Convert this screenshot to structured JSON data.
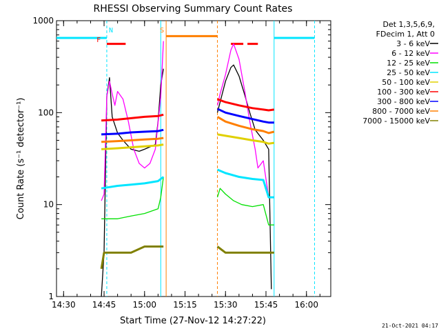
{
  "chart_data": {
    "type": "line",
    "title": "RHESSI Observing Summary Count Rates",
    "xlabel": "Start Time (27-Nov-12 14:27:22)",
    "ylabel": "Count Rate (s⁻¹ detector⁻¹)",
    "y_scale": "log",
    "ylim": [
      1,
      1000
    ],
    "xlim_minutes": [
      14.37,
      16.15
    ],
    "x_ticks": [
      "14:30",
      "14:45",
      "15:00",
      "15:15",
      "15:30",
      "15:45",
      "16:00"
    ],
    "y_ticks": [
      "1",
      "10",
      "100",
      "1000"
    ],
    "footer": "21-Oct-2021 04:17",
    "legend_header": [
      "Det 1,3,5,6,9,",
      "FDecim 1, Att 0"
    ],
    "markers": [
      {
        "label": "N",
        "x": "14:46",
        "color": "#00e5ff"
      },
      {
        "label": "F",
        "x": "14:44",
        "color": "#ff0000"
      },
      {
        "label": "S",
        "x": "15:08",
        "color": "#ff7f00"
      }
    ],
    "series": [
      {
        "name": "3 - 6 keV",
        "color": "#000000",
        "segments": [
          [
            [
              "14:44",
              1
            ],
            [
              "14:45",
              3
            ],
            [
              "14:46",
              150
            ],
            [
              "14:47",
              240
            ],
            [
              "14:48",
              90
            ],
            [
              "14:50",
              60
            ],
            [
              "14:52",
              50
            ],
            [
              "14:55",
              40
            ],
            [
              "14:58",
              38
            ],
            [
              "15:00",
              40
            ],
            [
              "15:04",
              45
            ],
            [
              "15:05",
              80
            ],
            [
              "15:06",
              200
            ],
            [
              "15:07",
              300
            ]
          ],
          [
            [
              "15:27",
              100
            ],
            [
              "15:28",
              130
            ],
            [
              "15:30",
              220
            ],
            [
              "15:32",
              310
            ],
            [
              "15:33",
              330
            ],
            [
              "15:35",
              250
            ],
            [
              "15:37",
              160
            ],
            [
              "15:39",
              100
            ],
            [
              "15:41",
              65
            ],
            [
              "15:44",
              50
            ],
            [
              "15:46",
              40
            ],
            [
              "15:47",
              1.2
            ]
          ]
        ]
      },
      {
        "name": "6 - 12 keV",
        "color": "#ff00ff",
        "segments": [
          [
            [
              "14:44",
              11
            ],
            [
              "14:45",
              13
            ],
            [
              "14:46",
              150
            ],
            [
              "14:47",
              220
            ],
            [
              "14:48",
              160
            ],
            [
              "14:49",
              120
            ],
            [
              "14:50",
              170
            ],
            [
              "14:52",
              140
            ],
            [
              "14:54",
              80
            ],
            [
              "14:56",
              40
            ],
            [
              "14:58",
              28
            ],
            [
              "15:00",
              25
            ],
            [
              "15:02",
              28
            ],
            [
              "15:04",
              40
            ],
            [
              "15:06",
              150
            ],
            [
              "15:07",
              600
            ]
          ],
          [
            [
              "15:27",
              120
            ],
            [
              "15:28",
              160
            ],
            [
              "15:30",
              260
            ],
            [
              "15:32",
              480
            ],
            [
              "15:33",
              560
            ],
            [
              "15:35",
              380
            ],
            [
              "15:37",
              180
            ],
            [
              "15:39",
              80
            ],
            [
              "15:41",
              40
            ],
            [
              "15:42",
              25
            ],
            [
              "15:44",
              30
            ],
            [
              "15:46",
              12
            ],
            [
              "15:48",
              12
            ]
          ]
        ]
      },
      {
        "name": "12 - 25 keV",
        "color": "#00e000",
        "segments": [
          [
            [
              "14:44",
              7
            ],
            [
              "14:50",
              7
            ],
            [
              "14:55",
              7.5
            ],
            [
              "15:00",
              8
            ],
            [
              "15:05",
              9
            ],
            [
              "15:06",
              12
            ],
            [
              "15:07",
              20
            ]
          ],
          [
            [
              "15:27",
              12
            ],
            [
              "15:28",
              15
            ],
            [
              "15:30",
              13
            ],
            [
              "15:33",
              11
            ],
            [
              "15:36",
              10
            ],
            [
              "15:40",
              9.5
            ],
            [
              "15:44",
              10
            ],
            [
              "15:46",
              6
            ],
            [
              "15:48",
              6
            ]
          ]
        ]
      },
      {
        "name": "25 - 50 keV",
        "color": "#00e5ff",
        "segments": [
          [
            [
              "14:44",
              15
            ],
            [
              "14:50",
              16
            ],
            [
              "14:55",
              16.5
            ],
            [
              "15:00",
              17
            ],
            [
              "15:05",
              18
            ],
            [
              "15:07",
              20
            ]
          ],
          [
            [
              "15:27",
              24
            ],
            [
              "15:30",
              22
            ],
            [
              "15:35",
              20
            ],
            [
              "15:40",
              19
            ],
            [
              "15:44",
              18.5
            ],
            [
              "15:46",
              12
            ],
            [
              "15:48",
              12
            ]
          ]
        ]
      },
      {
        "name": "50 - 100 keV",
        "color": "#e0d000",
        "segments": [
          [
            [
              "14:44",
              40
            ],
            [
              "14:50",
              41
            ],
            [
              "14:55",
              42
            ],
            [
              "15:00",
              43
            ],
            [
              "15:05",
              44
            ],
            [
              "15:07",
              45
            ]
          ],
          [
            [
              "15:27",
              58
            ],
            [
              "15:30",
              56
            ],
            [
              "15:35",
              53
            ],
            [
              "15:40",
              50
            ],
            [
              "15:44",
              48
            ],
            [
              "15:46",
              46
            ],
            [
              "15:48",
              47
            ]
          ]
        ]
      },
      {
        "name": "100 - 300 keV",
        "color": "#ff0000",
        "segments": [
          [
            [
              "14:44",
              82
            ],
            [
              "14:50",
              84
            ],
            [
              "14:55",
              87
            ],
            [
              "15:00",
              90
            ],
            [
              "15:05",
              92
            ],
            [
              "15:07",
              95
            ]
          ],
          [
            [
              "15:27",
              140
            ],
            [
              "15:30",
              130
            ],
            [
              "15:35",
              120
            ],
            [
              "15:40",
              112
            ],
            [
              "15:44",
              108
            ],
            [
              "15:46",
              106
            ],
            [
              "15:48",
              108
            ]
          ]
        ]
      },
      {
        "name": "300 - 800 keV",
        "color": "#0000ff",
        "segments": [
          [
            [
              "14:44",
              58
            ],
            [
              "14:50",
              59
            ],
            [
              "14:55",
              61
            ],
            [
              "15:00",
              62
            ],
            [
              "15:05",
              63
            ],
            [
              "15:07",
              65
            ]
          ],
          [
            [
              "15:27",
              110
            ],
            [
              "15:30",
              100
            ],
            [
              "15:35",
              92
            ],
            [
              "15:40",
              85
            ],
            [
              "15:44",
              80
            ],
            [
              "15:46",
              78
            ],
            [
              "15:48",
              78
            ]
          ]
        ]
      },
      {
        "name": "800 - 7000 keV",
        "color": "#ff7f00",
        "segments": [
          [
            [
              "14:44",
              48
            ],
            [
              "14:50",
              49
            ],
            [
              "14:55",
              50
            ],
            [
              "15:00",
              51
            ],
            [
              "15:05",
              52
            ],
            [
              "15:07",
              53
            ]
          ],
          [
            [
              "15:27",
              90
            ],
            [
              "15:30",
              80
            ],
            [
              "15:35",
              72
            ],
            [
              "15:40",
              66
            ],
            [
              "15:44",
              63
            ],
            [
              "15:46",
              60
            ],
            [
              "15:48",
              62
            ]
          ]
        ]
      },
      {
        "name": "7000 - 15000 keV",
        "color": "#808000",
        "segments": [
          [
            [
              "14:44",
              2
            ],
            [
              "14:45",
              3
            ],
            [
              "14:50",
              3
            ],
            [
              "14:55",
              3
            ],
            [
              "15:00",
              3.5
            ],
            [
              "15:05",
              3.5
            ],
            [
              "15:07",
              3.5
            ]
          ],
          [
            [
              "15:27",
              3.5
            ],
            [
              "15:30",
              3
            ],
            [
              "15:35",
              3
            ],
            [
              "15:40",
              3
            ],
            [
              "15:44",
              3
            ],
            [
              "15:46",
              3
            ],
            [
              "15:48",
              3
            ]
          ]
        ]
      }
    ],
    "bars": [
      {
        "label": "eclipse-day-left",
        "color": "#00e5ff",
        "x": [
          "14:27",
          "14:46"
        ],
        "y": 650
      },
      {
        "label": "flare-flag",
        "color": "#ff0000",
        "x": [
          "14:46",
          "14:53"
        ],
        "y": 560
      },
      {
        "label": "saa",
        "color": "#ff7f00",
        "x": [
          "15:08",
          "15:27"
        ],
        "y": 680
      },
      {
        "label": "flare-flag-2",
        "color": "#ff0000",
        "x": [
          "15:32",
          "15:42"
        ],
        "y": 560
      },
      {
        "label": "eclipse-day-right",
        "color": "#00e5ff",
        "x": [
          "15:48",
          "16:03"
        ],
        "y": 650
      }
    ]
  }
}
